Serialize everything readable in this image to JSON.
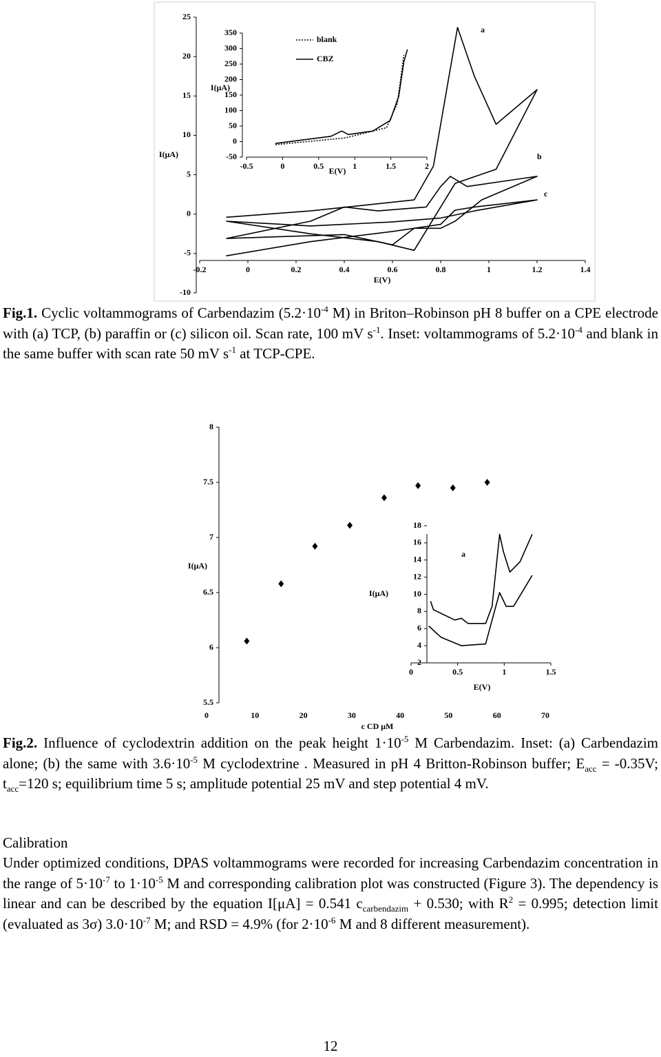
{
  "chart_data": [
    {
      "type": "line",
      "xlabel": "E(V)",
      "ylabel": "I(μA)",
      "color": "#000000",
      "xlim": [
        -0.2,
        1.4
      ],
      "ylim": [
        -10,
        25
      ],
      "xticks": [
        -0.2,
        0,
        0.2,
        0.4,
        0.6,
        0.8,
        1,
        1.2,
        1.4
      ],
      "yticks": [
        -10,
        -5,
        0,
        5,
        10,
        15,
        20,
        25
      ],
      "series": [
        {
          "name": "a",
          "x": [
            -0.09,
            0.26,
            0.69,
            0.77,
            0.83,
            0.87,
            0.94,
            1.03,
            1.2,
            1.03,
            0.86,
            0.8,
            0.69,
            0.54,
            0.26,
            -0.09
          ],
          "values": [
            -0.4,
            0.4,
            1.8,
            6.1,
            16.7,
            23.7,
            17.5,
            11.4,
            15.8,
            5.7,
            3.9,
            0.9,
            -4.6,
            -3.5,
            -2.5,
            -0.9
          ]
        },
        {
          "name": "b",
          "x": [
            -0.09,
            0.26,
            0.4,
            0.54,
            0.74,
            0.8,
            0.84,
            0.91,
            1.2,
            0.97,
            0.86,
            0.8,
            0.69,
            0.6,
            0.4,
            -0.09
          ],
          "values": [
            -3.1,
            -0.9,
            0.9,
            0.4,
            0.9,
            3.5,
            4.8,
            3.5,
            4.8,
            1.8,
            -0.9,
            -1.8,
            -1.8,
            -3.9,
            -2.6,
            -3.1
          ]
        },
        {
          "name": "c",
          "x": [
            -0.09,
            0.26,
            0.6,
            0.8,
            0.86,
            0.94,
            1.2,
            0.94,
            0.8,
            0.6,
            0.26,
            -0.09
          ],
          "values": [
            -5.3,
            -3.5,
            -2.2,
            -1.3,
            0.5,
            0.9,
            1.8,
            0.4,
            -0.5,
            -1,
            -1.5,
            -0.9
          ]
        }
      ]
    },
    {
      "type": "line",
      "xlabel": "E(V)",
      "ylabel": "I(μA)",
      "color": "#000000",
      "legend": "upper left",
      "xlim": [
        -0.5,
        2
      ],
      "ylim": [
        -50,
        350
      ],
      "xticks": [
        -0.5,
        0,
        0.5,
        1,
        1.5,
        2
      ],
      "yticks": [
        -50,
        0,
        50,
        100,
        150,
        200,
        250,
        300,
        350
      ],
      "series": [
        {
          "name": "blank",
          "style": "dotted",
          "x": [
            -0.1,
            0.87,
            1.44,
            1.59,
            1.68
          ],
          "values": [
            -10,
            12,
            45,
            123,
            279
          ]
        },
        {
          "name": "CBZ",
          "style": "solid",
          "x": [
            -0.1,
            0.67,
            0.82,
            0.91,
            1.25,
            1.49,
            1.61,
            1.68,
            1.73
          ],
          "values": [
            -6,
            17,
            34,
            23,
            34,
            68,
            146,
            257,
            297
          ]
        }
      ]
    },
    {
      "type": "scatter",
      "xlabel": "c CD μM",
      "ylabel": "I(μA)",
      "color": "#000000",
      "xlim": [
        0,
        70
      ],
      "ylim": [
        5.5,
        8
      ],
      "xticks": [
        0,
        10,
        20,
        30,
        40,
        50,
        60,
        70
      ],
      "yticks": [
        5.5,
        6,
        6.5,
        7,
        7.5,
        8
      ],
      "x": [
        8.3,
        15.4,
        22.4,
        29.6,
        36.7,
        43.7,
        50.9,
        58
      ],
      "values": [
        6.06,
        6.58,
        6.92,
        7.11,
        7.36,
        7.47,
        7.45,
        7.5
      ]
    },
    {
      "type": "line",
      "xlabel": "E(V)",
      "ylabel": "I(μA)",
      "color": "#000000",
      "annotation": "a",
      "xlim": [
        0,
        1.5
      ],
      "ylim": [
        2,
        18
      ],
      "xticks": [
        0,
        0.5,
        1,
        1.5
      ],
      "yticks": [
        2,
        4,
        6,
        8,
        10,
        12,
        14,
        16,
        18
      ],
      "series": [
        {
          "x": [
            0.21,
            0.24,
            0.47,
            0.54,
            0.61,
            0.8,
            0.87,
            0.95,
            0.99,
            1.06,
            1.17,
            1.3
          ],
          "values": [
            9.2,
            8.2,
            7,
            7.2,
            6.6,
            6.6,
            8.6,
            17,
            15,
            12.6,
            13.8,
            17
          ]
        },
        {
          "x": [
            0.19,
            0.32,
            0.54,
            0.8,
            0.87,
            0.95,
            1.02,
            1.1,
            1.3
          ],
          "values": [
            6.3,
            5,
            4,
            4.2,
            7,
            10.2,
            8.6,
            8.6,
            12.2
          ]
        }
      ]
    }
  ],
  "figure1_caption": [
    "Fig.1.",
    " Cyclic voltammograms of Carbendazim (5.2·10",
    "-4",
    " M) in Briton–Robinson pH 8 buffer on a CPE electrode with (a) TCP, (b) paraffin or (c) silicon oil. Scan rate, 100 mV s",
    "-1",
    ". Inset: voltammograms of 5.2·10",
    "-4",
    " and blank in the same buffer with scan rate 50 mV s",
    "-1",
    " at TCP-CPE."
  ],
  "figure2_caption": [
    "Fig.2.",
    " Influence of cyclodextrin addition on the peak height 1·10",
    "-5",
    " M Carbendazim. Inset: (a) Carbendazim alone; (b) the same with 3.6·10",
    "-5",
    " M cyclodextrine . Measured in pH 4 Britton-Robinson buffer; E",
    "acc",
    " = -0.35V; t",
    "acc",
    "=120 s; equilibrium time 5 s; amplitude potential 25 mV and step potential 4 mV."
  ],
  "section": {
    "heading": "Calibration",
    "paragraph": [
      "Under optimized conditions, DPAS voltammograms were recorded for increasing Carbendazim concentration in the range of 5·10",
      "-7",
      " to 1·10",
      "-5",
      " M and corresponding calibration plot was constructed (Figure 3). The dependency is linear and can be described by the equation I[μA] = 0.541 c",
      "carbendazim",
      " + 0.530; with R",
      "2",
      " = 0.995; detection limit (evaluated as 3σ) 3.0·10",
      "-7",
      " M; and RSD = 4.9% (for 2·10",
      "-6",
      " M and 8 different measurement)."
    ]
  },
  "page_number": "12"
}
